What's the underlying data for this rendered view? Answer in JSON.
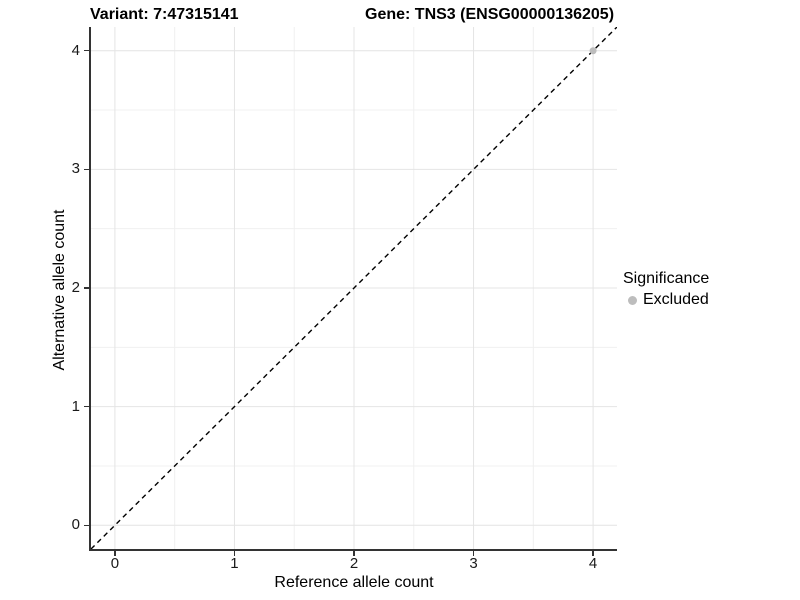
{
  "chart_data": {
    "type": "scatter",
    "titles": {
      "variant": "Variant: 7:47315141",
      "gene": "Gene: TNS3 (ENSG00000136205)"
    },
    "xlabel": "Reference allele count",
    "ylabel": "Alternative allele count",
    "xlim": [
      -0.2,
      4.2
    ],
    "ylim": [
      -0.2,
      4.2
    ],
    "xticks": [
      0,
      1,
      2,
      3,
      4
    ],
    "yticks": [
      0,
      1,
      2,
      3,
      4
    ],
    "xticks_minor": [
      0.5,
      1.5,
      2.5,
      3.5
    ],
    "yticks_minor": [
      0.5,
      1.5,
      2.5,
      3.5
    ],
    "grid": true,
    "identity_line": {
      "style": "dashed",
      "color": "#000000"
    },
    "series": [
      {
        "name": "Excluded",
        "color": "#bdbdbd",
        "points": [
          {
            "x": 4,
            "y": 4
          }
        ]
      }
    ],
    "legend": {
      "title": "Significance",
      "position": "right",
      "items": [
        {
          "label": "Excluded",
          "color": "#bdbdbd"
        }
      ]
    }
  },
  "colors": {
    "background": "#ffffff",
    "grid_major": "#e4e4e4",
    "grid_minor": "#f0f0f0",
    "axis_line": "#333333",
    "tick_mark": "#333333",
    "tick_text": "#1a1a1a",
    "title_text": "#000000"
  }
}
